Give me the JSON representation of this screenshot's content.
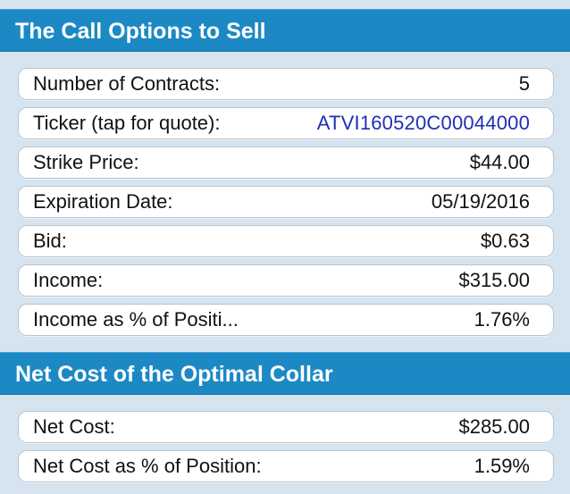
{
  "colors": {
    "background": "#d6e4f0",
    "header": "#1c89c5",
    "link": "#1f2fb4"
  },
  "call_section": {
    "title": "The Call Options to Sell",
    "rows": [
      {
        "label": "Number of Contracts:",
        "value": "5"
      },
      {
        "label": "Ticker (tap for quote):",
        "value": "ATVI160520C00044000"
      },
      {
        "label": "Strike Price:",
        "value": "$44.00"
      },
      {
        "label": "Expiration Date:",
        "value": "05/19/2016"
      },
      {
        "label": "Bid:",
        "value": "$0.63"
      },
      {
        "label": "Income:",
        "value": "$315.00"
      },
      {
        "label": "Income as % of Positi...",
        "value": "1.76%"
      }
    ]
  },
  "collar_section": {
    "title": "Net Cost of the Optimal Collar",
    "rows": [
      {
        "label": "Net Cost:",
        "value": "$285.00"
      },
      {
        "label": "Net Cost as % of Position:",
        "value": "1.59%"
      }
    ]
  }
}
